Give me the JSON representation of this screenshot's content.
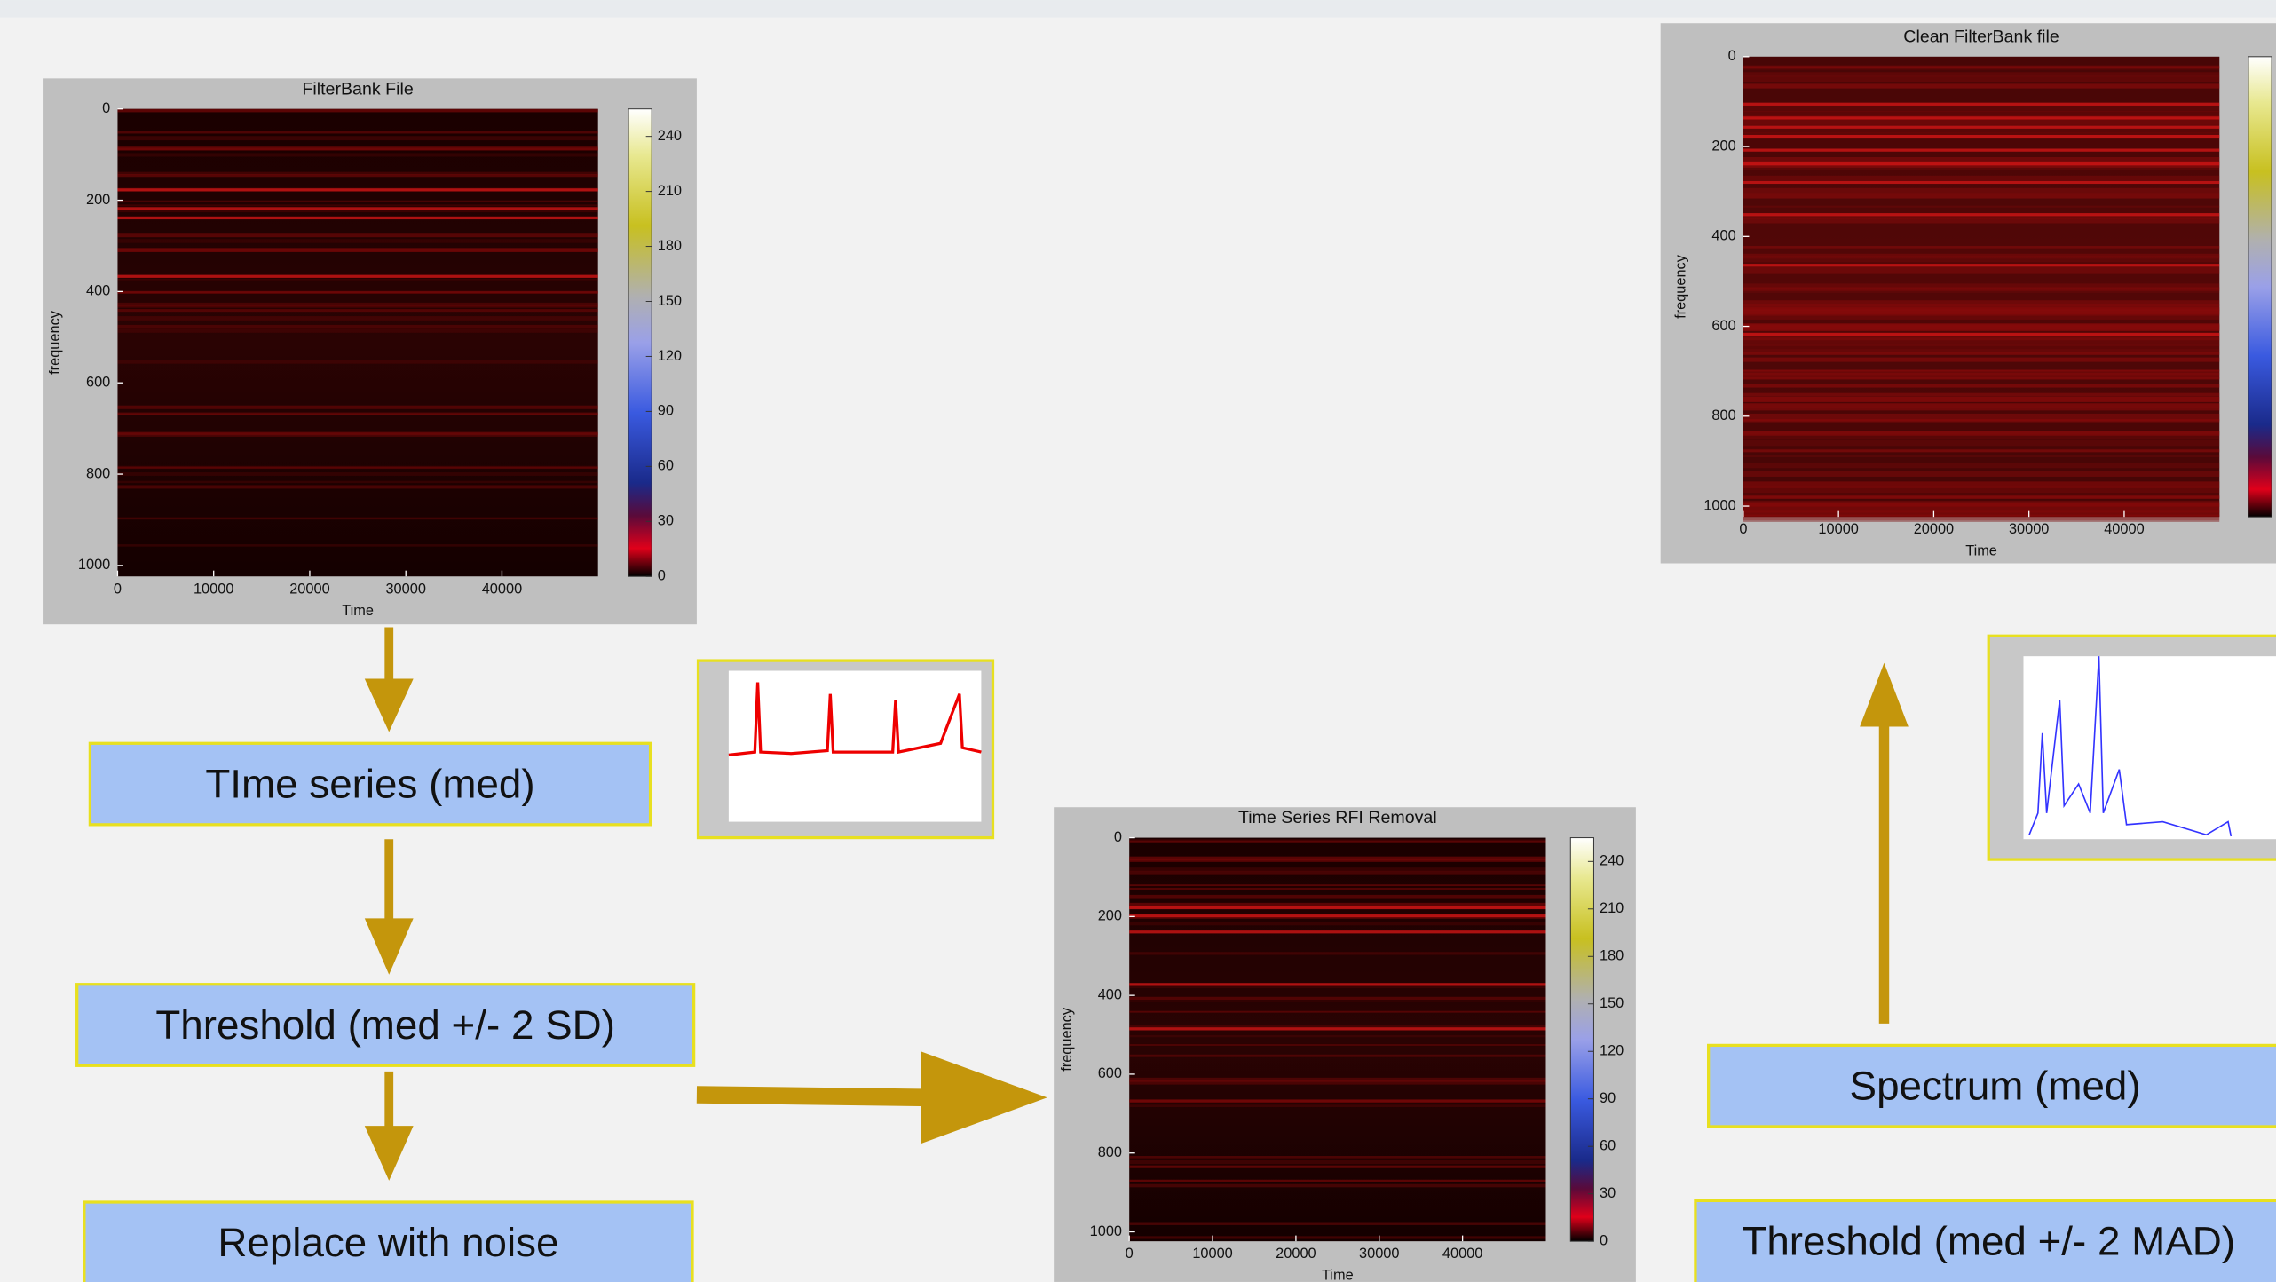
{
  "plots": [
    {
      "title": "FilterBank File",
      "xlabel": "Time",
      "ylabel": "frequency",
      "xlim": [
        0,
        50000
      ],
      "ylim": [
        0,
        1024
      ],
      "xticks": [
        0,
        10000,
        20000,
        30000,
        40000
      ],
      "yticks": [
        0,
        200,
        400,
        600,
        800,
        1000
      ],
      "clim": [
        0,
        255
      ],
      "cticks": [
        0,
        30,
        60,
        90,
        120,
        150,
        180,
        210,
        240
      ]
    },
    {
      "title": "Time Series RFI Removal",
      "xlabel": "Time",
      "ylabel": "frequency",
      "xlim": [
        0,
        50000
      ],
      "ylim": [
        0,
        1024
      ],
      "xticks": [
        0,
        10000,
        20000,
        30000,
        40000
      ],
      "yticks": [
        0,
        200,
        400,
        600,
        800,
        1000
      ],
      "clim": [
        0,
        255
      ],
      "cticks": [
        0,
        30,
        60,
        90,
        120,
        150,
        180,
        210,
        240
      ]
    },
    {
      "title": "Clean FilterBank file",
      "xlabel": "Time",
      "ylabel": "frequency",
      "xlim": [
        0,
        50000
      ],
      "ylim": [
        0,
        1024
      ],
      "xticks": [
        0,
        10000,
        20000,
        30000,
        40000
      ],
      "yticks": [
        0,
        200,
        400,
        600,
        800,
        1000
      ]
    }
  ],
  "steps": [
    {
      "label": "TIme series (med)"
    },
    {
      "label": "Threshold (med +/- 2 SD)"
    },
    {
      "label": "Replace with noise"
    },
    {
      "label": "Spectrum (med)"
    },
    {
      "label": "Threshold (med +/- 2 MAD)"
    }
  ]
}
